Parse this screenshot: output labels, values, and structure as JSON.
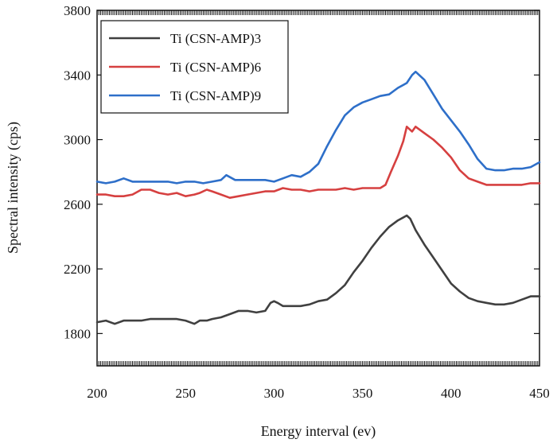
{
  "chart_data": {
    "type": "line",
    "xlabel": "Energy interval (ev)",
    "ylabel": "Spectral intensity (cps)",
    "xlim": [
      200,
      450
    ],
    "ylim": [
      1600,
      3800
    ],
    "xticks": [
      200,
      250,
      300,
      350,
      400,
      450
    ],
    "xtick_labels": [
      "200",
      "250",
      "300",
      "350",
      "400",
      "450"
    ],
    "yticks": [
      1800,
      2200,
      2600,
      3000,
      3400,
      3800
    ],
    "ytick_labels": [
      "1800",
      "2200",
      "2600",
      "3000",
      "3400",
      "3800"
    ],
    "grid": false,
    "legend_position": "top-left",
    "series": [
      {
        "name": "Ti (CSN-AMP)3",
        "color": "#404040",
        "x": [
          200,
          205,
          210,
          215,
          220,
          225,
          230,
          235,
          240,
          245,
          250,
          255,
          258,
          262,
          265,
          270,
          275,
          280,
          285,
          290,
          295,
          298,
          300,
          302,
          305,
          310,
          315,
          320,
          325,
          330,
          335,
          340,
          345,
          350,
          355,
          360,
          365,
          370,
          375,
          377,
          380,
          385,
          390,
          395,
          400,
          405,
          410,
          415,
          420,
          425,
          430,
          435,
          440,
          445,
          450
        ],
        "y": [
          1870,
          1880,
          1860,
          1880,
          1880,
          1880,
          1890,
          1890,
          1890,
          1890,
          1880,
          1860,
          1880,
          1880,
          1890,
          1900,
          1920,
          1940,
          1940,
          1930,
          1940,
          1990,
          2000,
          1990,
          1970,
          1970,
          1970,
          1980,
          2000,
          2010,
          2050,
          2100,
          2180,
          2250,
          2330,
          2400,
          2460,
          2500,
          2530,
          2510,
          2440,
          2350,
          2270,
          2190,
          2110,
          2060,
          2020,
          2000,
          1990,
          1980,
          1980,
          1990,
          2010,
          2030,
          2030
        ]
      },
      {
        "name": "Ti (CSN-AMP)6",
        "color": "#d64040",
        "x": [
          200,
          205,
          210,
          215,
          220,
          225,
          230,
          235,
          240,
          245,
          250,
          255,
          258,
          262,
          265,
          270,
          275,
          280,
          285,
          290,
          295,
          300,
          305,
          310,
          315,
          320,
          325,
          330,
          335,
          340,
          345,
          350,
          355,
          360,
          363,
          366,
          370,
          373,
          375,
          378,
          380,
          385,
          390,
          395,
          400,
          405,
          410,
          415,
          420,
          425,
          430,
          435,
          440,
          445,
          450
        ],
        "y": [
          2660,
          2660,
          2650,
          2650,
          2660,
          2690,
          2690,
          2670,
          2660,
          2670,
          2650,
          2660,
          2670,
          2690,
          2680,
          2660,
          2640,
          2650,
          2660,
          2670,
          2680,
          2680,
          2700,
          2690,
          2690,
          2680,
          2690,
          2690,
          2690,
          2700,
          2690,
          2700,
          2700,
          2700,
          2720,
          2800,
          2900,
          2990,
          3080,
          3050,
          3080,
          3040,
          3000,
          2950,
          2890,
          2810,
          2760,
          2740,
          2720,
          2720,
          2720,
          2720,
          2720,
          2730,
          2730
        ]
      },
      {
        "name": "Ti (CSN-AMP)9",
        "color": "#2e6fc9",
        "x": [
          200,
          205,
          210,
          215,
          220,
          225,
          230,
          235,
          240,
          245,
          250,
          255,
          260,
          265,
          270,
          273,
          278,
          285,
          290,
          295,
          300,
          305,
          310,
          315,
          320,
          325,
          330,
          335,
          340,
          345,
          350,
          355,
          360,
          365,
          370,
          375,
          378,
          380,
          385,
          390,
          395,
          400,
          405,
          410,
          415,
          420,
          425,
          430,
          435,
          440,
          445,
          450
        ],
        "y": [
          2740,
          2730,
          2740,
          2760,
          2740,
          2740,
          2740,
          2740,
          2740,
          2730,
          2740,
          2740,
          2730,
          2740,
          2750,
          2780,
          2750,
          2750,
          2750,
          2750,
          2740,
          2760,
          2780,
          2770,
          2800,
          2850,
          2960,
          3060,
          3150,
          3200,
          3230,
          3250,
          3270,
          3280,
          3320,
          3350,
          3400,
          3420,
          3370,
          3280,
          3190,
          3120,
          3050,
          2970,
          2880,
          2820,
          2810,
          2810,
          2820,
          2820,
          2830,
          2860
        ]
      }
    ]
  }
}
